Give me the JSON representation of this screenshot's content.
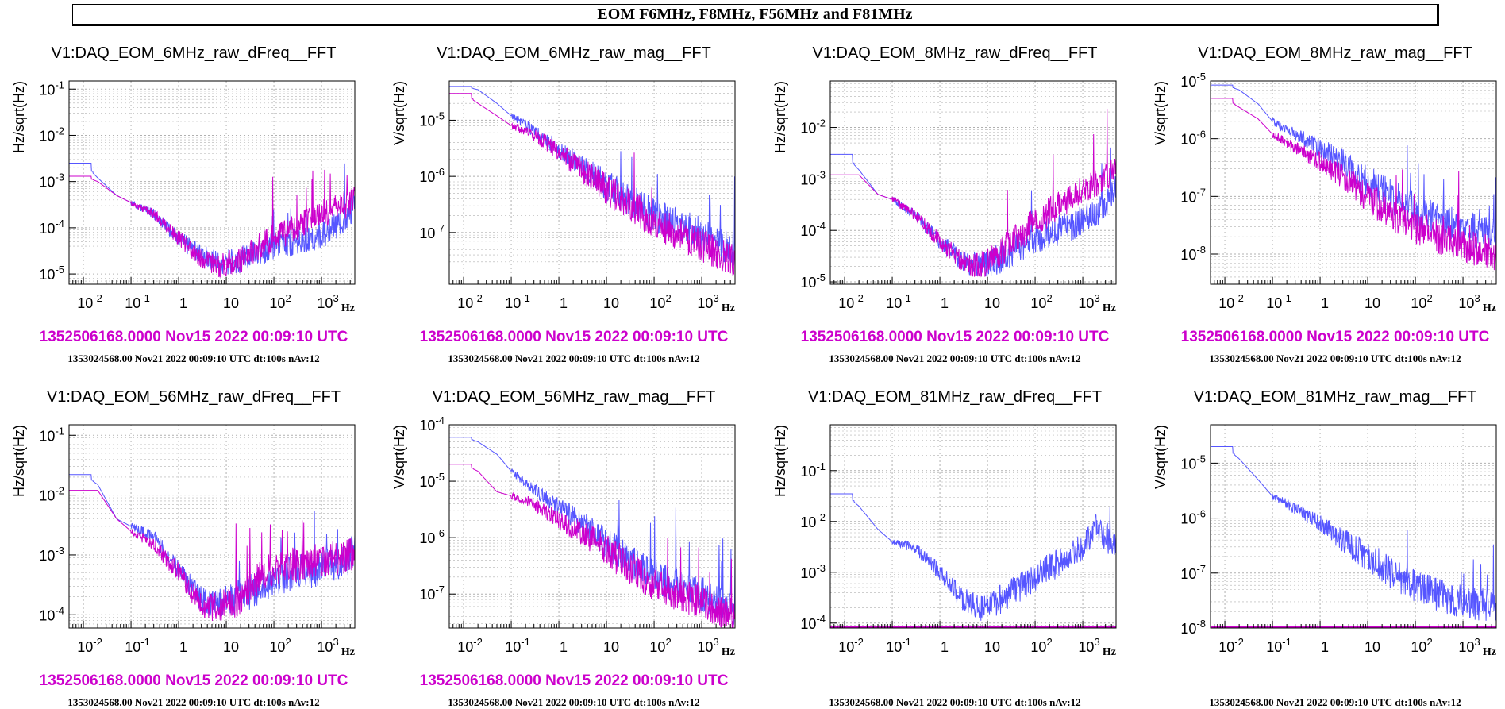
{
  "banner": "EOM F6MHz, F8MHz, F56MHz and F81MHz",
  "colors": {
    "reference": "#cc00cc",
    "current": "#5555ff",
    "grid": "#b0b0b0"
  },
  "chart_data": [
    {
      "type": "line",
      "title": "V1:DAQ_EOM_6MHz_raw_dFreq__FFT",
      "ylabel": "Hz/sqrt(Hz)",
      "xunit": "Hz",
      "xlog": true,
      "ylog": true,
      "xlim": [
        0.005,
        5000
      ],
      "ylim": [
        6e-06,
        0.15
      ],
      "ref_time": "1352506168.0000 Nov15 2022 00:09:10 UTC",
      "cur_time": "1353024568.00 Nov21 2022 00:09:10 UTC dt:100s nAv:12",
      "series": [
        {
          "role": "current",
          "x": [
            0.005,
            0.01,
            0.02,
            0.05,
            0.1,
            0.3,
            1,
            3,
            7,
            20,
            50,
            100,
            300,
            1000,
            3000,
            5000
          ],
          "y": [
            0.0025,
            0.0025,
            0.0012,
            0.0005,
            0.00035,
            0.0002,
            6e-05,
            2.5e-05,
            1.8e-05,
            2e-05,
            3e-05,
            4e-05,
            5e-05,
            7e-05,
            0.00015,
            0.0003
          ]
        },
        {
          "role": "reference",
          "x": [
            0.005,
            0.01,
            0.02,
            0.05,
            0.1,
            0.3,
            1,
            3,
            7,
            20,
            50,
            100,
            300,
            1000,
            3000,
            5000
          ],
          "y": [
            0.0013,
            0.0013,
            0.001,
            0.0005,
            0.00035,
            0.0002,
            6e-05,
            2.2e-05,
            1.5e-05,
            2e-05,
            4e-05,
            6e-05,
            0.0001,
            0.0002,
            0.0003,
            0.0004
          ]
        }
      ]
    },
    {
      "type": "line",
      "title": "V1:DAQ_EOM_6MHz_raw_mag__FFT",
      "ylabel": "V/sqrt(Hz)",
      "xunit": "Hz",
      "xlog": true,
      "ylog": true,
      "xlim": [
        0.005,
        5000
      ],
      "ylim": [
        1.2e-08,
        5e-05
      ],
      "ref_time": "1352506168.0000 Nov15 2022 00:09:10 UTC",
      "cur_time": "1353024568.00 Nov21 2022 00:09:10 UTC dt:100s nAv:12",
      "series": [
        {
          "role": "current",
          "x": [
            0.005,
            0.01,
            0.02,
            0.05,
            0.1,
            0.3,
            1,
            3,
            10,
            30,
            100,
            300,
            1000,
            5000
          ],
          "y": [
            4e-05,
            4e-05,
            3.5e-05,
            2e-05,
            1.2e-05,
            6.5e-06,
            3e-06,
            1.5e-06,
            7e-07,
            4e-07,
            2e-07,
            1.4e-07,
            1e-07,
            4.5e-08
          ]
        },
        {
          "role": "reference",
          "x": [
            0.005,
            0.01,
            0.02,
            0.05,
            0.1,
            0.3,
            1,
            3,
            10,
            30,
            100,
            300,
            1000,
            5000
          ],
          "y": [
            3e-05,
            3e-05,
            2e-05,
            1.2e-05,
            8e-06,
            5.5e-06,
            2.8e-06,
            1.3e-06,
            6e-07,
            3e-07,
            1.5e-07,
            1e-07,
            6e-08,
            3e-08
          ]
        }
      ]
    },
    {
      "type": "line",
      "title": "V1:DAQ_EOM_8MHz_raw_dFreq__FFT",
      "ylabel": "Hz/sqrt(Hz)",
      "xunit": "Hz",
      "xlog": true,
      "ylog": true,
      "xlim": [
        0.005,
        5000
      ],
      "ylim": [
        9e-06,
        0.08
      ],
      "ref_time": "1352506168.0000 Nov15 2022 00:09:10 UTC",
      "cur_time": "1353024568.00 Nov21 2022 00:09:10 UTC dt:100s nAv:12",
      "series": [
        {
          "role": "current",
          "x": [
            0.005,
            0.01,
            0.02,
            0.05,
            0.1,
            0.3,
            1,
            3,
            7,
            20,
            50,
            100,
            300,
            1000,
            3000,
            5000
          ],
          "y": [
            0.003,
            0.003,
            0.0015,
            0.0005,
            0.0004,
            0.0002,
            6e-05,
            2.5e-05,
            2e-05,
            3e-05,
            5e-05,
            7e-05,
            0.0001,
            0.00015,
            0.0003,
            0.0006
          ]
        },
        {
          "role": "reference",
          "x": [
            0.005,
            0.01,
            0.02,
            0.05,
            0.1,
            0.3,
            1,
            3,
            7,
            20,
            50,
            100,
            300,
            1000,
            3000,
            5000
          ],
          "y": [
            0.0012,
            0.0012,
            0.0012,
            0.0005,
            0.0004,
            0.0002,
            6e-05,
            2.5e-05,
            2e-05,
            4e-05,
            8e-05,
            0.00015,
            0.0003,
            0.0006,
            0.001,
            0.0015
          ]
        }
      ]
    },
    {
      "type": "line",
      "title": "V1:DAQ_EOM_8MHz_raw_mag__FFT",
      "ylabel": "V/sqrt(Hz)",
      "xunit": "Hz",
      "xlog": true,
      "ylog": true,
      "xlim": [
        0.005,
        5000
      ],
      "ylim": [
        3e-09,
        1e-05
      ],
      "ref_time": "1352506168.0000 Nov15 2022 00:09:10 UTC",
      "cur_time": "1353024568.00 Nov21 2022 00:09:10 UTC dt:100s nAv:12",
      "series": [
        {
          "role": "current",
          "x": [
            0.005,
            0.01,
            0.02,
            0.05,
            0.1,
            0.3,
            1,
            3,
            10,
            30,
            100,
            300,
            1000,
            5000
          ],
          "y": [
            8.5e-06,
            8.5e-06,
            7e-06,
            4e-06,
            2e-06,
            1.2e-06,
            7e-07,
            4e-07,
            1.8e-07,
            1e-07,
            6e-08,
            4e-08,
            3e-08,
            2e-08
          ]
        },
        {
          "role": "reference",
          "x": [
            0.005,
            0.01,
            0.02,
            0.05,
            0.1,
            0.3,
            1,
            3,
            10,
            30,
            100,
            300,
            1000,
            5000
          ],
          "y": [
            5e-06,
            5e-06,
            3.5e-06,
            2.2e-06,
            1.2e-06,
            7e-07,
            4e-07,
            2.2e-07,
            1e-07,
            5e-08,
            3e-08,
            2e-08,
            1.4e-08,
            1e-08
          ]
        }
      ]
    },
    {
      "type": "line",
      "title": "V1:DAQ_EOM_56MHz_raw_dFreq__FFT",
      "ylabel": "Hz/sqrt(Hz)",
      "xunit": "Hz",
      "xlog": true,
      "ylog": true,
      "xlim": [
        0.005,
        5000
      ],
      "ylim": [
        6e-05,
        0.15
      ],
      "ref_time": "1352506168.0000 Nov15 2022 00:09:10 UTC",
      "cur_time": "1353024568.00 Nov21 2022 00:09:10 UTC dt:100s nAv:12",
      "series": [
        {
          "role": "current",
          "x": [
            0.005,
            0.01,
            0.02,
            0.05,
            0.1,
            0.3,
            1,
            3,
            7,
            20,
            50,
            100,
            300,
            1000,
            3000,
            5000
          ],
          "y": [
            0.022,
            0.022,
            0.015,
            0.004,
            0.003,
            0.002,
            0.0006,
            0.00018,
            0.00015,
            0.0002,
            0.0003,
            0.0004,
            0.0005,
            0.0006,
            0.0008,
            0.0012
          ]
        },
        {
          "role": "reference",
          "x": [
            0.005,
            0.01,
            0.02,
            0.05,
            0.1,
            0.3,
            1,
            3,
            7,
            20,
            50,
            100,
            300,
            1000,
            3000,
            5000
          ],
          "y": [
            0.012,
            0.012,
            0.012,
            0.004,
            0.0025,
            0.0015,
            0.0005,
            0.00015,
            0.00013,
            0.0002,
            0.0004,
            0.0006,
            0.0007,
            0.0008,
            0.0009,
            0.001
          ]
        }
      ]
    },
    {
      "type": "line",
      "title": "V1:DAQ_EOM_56MHz_raw_mag__FFT",
      "ylabel": "V/sqrt(Hz)",
      "xunit": "Hz",
      "xlog": true,
      "ylog": true,
      "xlim": [
        0.005,
        5000
      ],
      "ylim": [
        2.5e-08,
        0.0001
      ],
      "ref_time": "1352506168.0000 Nov15 2022 00:09:10 UTC",
      "cur_time": "1353024568.00 Nov21 2022 00:09:10 UTC dt:100s nAv:12",
      "series": [
        {
          "role": "current",
          "x": [
            0.005,
            0.01,
            0.02,
            0.05,
            0.1,
            0.3,
            1,
            3,
            10,
            30,
            100,
            300,
            1000,
            5000
          ],
          "y": [
            6e-05,
            6e-05,
            5e-05,
            3e-05,
            1.5e-05,
            7e-06,
            3.5e-06,
            1.8e-06,
            8e-07,
            4e-07,
            2e-07,
            1.4e-07,
            1e-07,
            5e-08
          ]
        },
        {
          "role": "reference",
          "x": [
            0.005,
            0.01,
            0.02,
            0.05,
            0.1,
            0.3,
            1,
            3,
            10,
            30,
            100,
            300,
            1000,
            5000
          ],
          "y": [
            2e-05,
            2e-05,
            1.5e-05,
            6.5e-06,
            5.5e-06,
            4e-06,
            2e-06,
            1.2e-06,
            6e-07,
            3e-07,
            1.5e-07,
            1e-07,
            7e-08,
            4e-08
          ]
        }
      ]
    },
    {
      "type": "line",
      "title": "V1:DAQ_EOM_81MHz_raw_dFreq__FFT",
      "ylabel": "Hz/sqrt(Hz)",
      "xunit": "Hz",
      "xlog": true,
      "ylog": true,
      "xlim": [
        0.005,
        5000
      ],
      "ylim": [
        8e-05,
        0.8
      ],
      "ref_time": "",
      "cur_time": "1353024568.00 Nov21 2022 00:09:10 UTC dt:100s nAv:12",
      "series": [
        {
          "role": "current",
          "x": [
            0.005,
            0.01,
            0.02,
            0.05,
            0.1,
            0.3,
            1,
            3,
            7,
            20,
            50,
            100,
            300,
            1000,
            2000,
            5000
          ],
          "y": [
            0.035,
            0.035,
            0.02,
            0.007,
            0.004,
            0.003,
            0.001,
            0.0003,
            0.0002,
            0.0003,
            0.0005,
            0.0008,
            0.0015,
            0.003,
            0.008,
            0.003
          ]
        }
      ]
    },
    {
      "type": "line",
      "title": "V1:DAQ_EOM_81MHz_raw_mag__FFT",
      "ylabel": "V/sqrt(Hz)",
      "xunit": "Hz",
      "xlog": true,
      "ylog": true,
      "xlim": [
        0.005,
        5000
      ],
      "ylim": [
        1e-08,
        5e-05
      ],
      "ref_time": "",
      "cur_time": "1353024568.00 Nov21 2022 00:09:10 UTC dt:100s nAv:12",
      "series": [
        {
          "role": "current",
          "x": [
            0.005,
            0.01,
            0.02,
            0.05,
            0.1,
            0.3,
            1,
            3,
            10,
            30,
            100,
            300,
            1000,
            5000
          ],
          "y": [
            2e-05,
            2e-05,
            1.2e-05,
            5e-06,
            2.5e-06,
            1.5e-06,
            8e-07,
            4e-07,
            2e-07,
            1e-07,
            6e-08,
            4e-08,
            3e-08,
            2.5e-08
          ]
        }
      ]
    }
  ]
}
